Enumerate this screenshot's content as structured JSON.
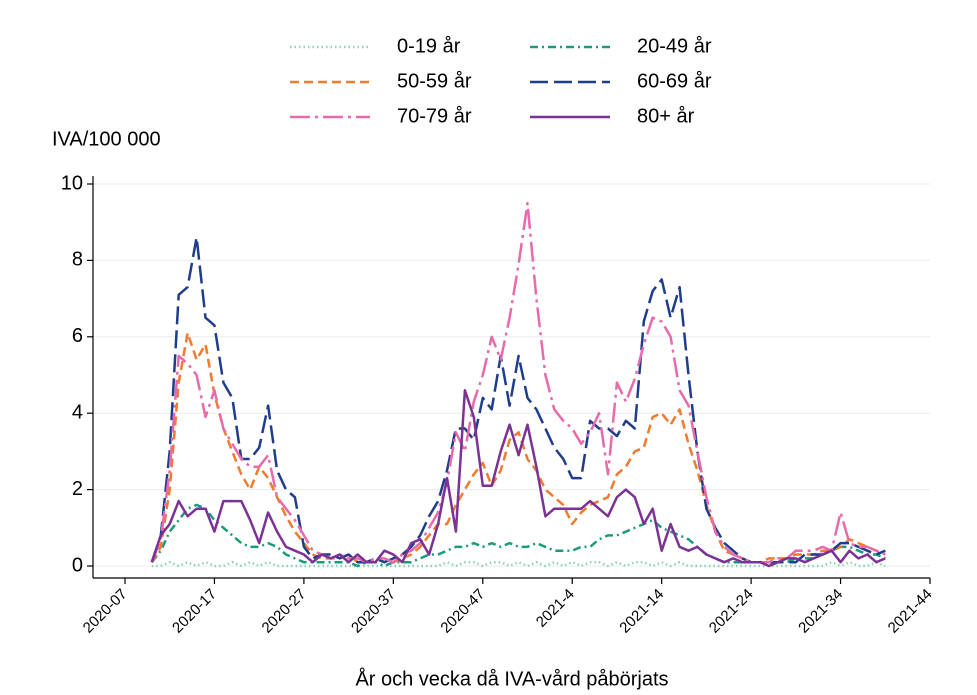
{
  "chart_data": {
    "type": "line",
    "y_label": "IVA/100 000",
    "x_label": "År och vecka då IVA-vård påbörjats",
    "x": [
      "2020-10",
      "2020-11",
      "2020-12",
      "2020-13",
      "2020-14",
      "2020-15",
      "2020-16",
      "2020-17",
      "2020-18",
      "2020-19",
      "2020-20",
      "2020-21",
      "2020-22",
      "2020-23",
      "2020-24",
      "2020-25",
      "2020-26",
      "2020-27",
      "2020-28",
      "2020-29",
      "2020-30",
      "2020-31",
      "2020-32",
      "2020-33",
      "2020-34",
      "2020-35",
      "2020-36",
      "2020-37",
      "2020-38",
      "2020-39",
      "2020-40",
      "2020-41",
      "2020-42",
      "2020-43",
      "2020-44",
      "2020-45",
      "2020-46",
      "2020-47",
      "2020-48",
      "2020-49",
      "2020-50",
      "2020-51",
      "2020-52",
      "2020-53",
      "2021-1",
      "2021-2",
      "2021-3",
      "2021-4",
      "2021-5",
      "2021-6",
      "2021-7",
      "2021-8",
      "2021-9",
      "2021-10",
      "2021-11",
      "2021-12",
      "2021-13",
      "2021-14",
      "2021-15",
      "2021-16",
      "2021-17",
      "2021-18",
      "2021-19",
      "2021-20",
      "2021-21",
      "2021-22",
      "2021-23",
      "2021-24",
      "2021-25",
      "2021-26",
      "2021-27",
      "2021-28",
      "2021-29",
      "2021-30",
      "2021-31",
      "2021-32",
      "2021-33",
      "2021-34",
      "2021-35",
      "2021-36",
      "2021-37",
      "2021-38",
      "2021-39"
    ],
    "xlim": [
      "2020-07",
      "2021-44"
    ],
    "xticks": [
      "2020-07",
      "2020-17",
      "2020-27",
      "2020-37",
      "2020-47",
      "2021-4",
      "2021-14",
      "2021-24",
      "2021-34",
      "2021-44"
    ],
    "ylim": [
      0,
      10
    ],
    "yticks": [
      0,
      2,
      4,
      6,
      8,
      10
    ],
    "grid": true,
    "legend": "top",
    "series": [
      {
        "name": "0-19 år",
        "color": "#8fd1b5",
        "dash": "dotted",
        "values": [
          0.0,
          0.0,
          0.1,
          0.0,
          0.1,
          0.0,
          0.1,
          0.0,
          0.0,
          0.1,
          0.0,
          0.1,
          0.0,
          0.1,
          0.0,
          0.0,
          0.0,
          0.0,
          0.0,
          0.0,
          0.0,
          0.0,
          0.0,
          0.0,
          0.0,
          0.0,
          0.0,
          0.0,
          0.0,
          0.0,
          0.0,
          0.0,
          0.0,
          0.1,
          0.0,
          0.1,
          0.1,
          0.0,
          0.1,
          0.1,
          0.0,
          0.1,
          0.0,
          0.1,
          0.0,
          0.1,
          0.0,
          0.1,
          0.0,
          0.1,
          0.1,
          0.0,
          0.1,
          0.0,
          0.1,
          0.1,
          0.0,
          0.1,
          0.0,
          0.1,
          0.0,
          0.0,
          0.0,
          0.0,
          0.0,
          0.0,
          0.0,
          0.0,
          0.0,
          0.0,
          0.0,
          0.0,
          0.0,
          0.0,
          0.0,
          0.0,
          0.1,
          0.0,
          0.1,
          0.0,
          0.0,
          0.1,
          0.0
        ]
      },
      {
        "name": "20-49 år",
        "color": "#1a9b7d",
        "dash": "dashdot",
        "values": [
          0.1,
          0.4,
          0.9,
          1.2,
          1.5,
          1.6,
          1.5,
          1.2,
          1.0,
          0.8,
          0.6,
          0.5,
          0.5,
          0.6,
          0.5,
          0.3,
          0.2,
          0.1,
          0.1,
          0.1,
          0.1,
          0.1,
          0.1,
          0.0,
          0.1,
          0.1,
          0.0,
          0.1,
          0.1,
          0.1,
          0.2,
          0.3,
          0.3,
          0.4,
          0.5,
          0.5,
          0.6,
          0.5,
          0.6,
          0.5,
          0.6,
          0.5,
          0.5,
          0.6,
          0.5,
          0.4,
          0.4,
          0.4,
          0.5,
          0.5,
          0.7,
          0.8,
          0.8,
          0.9,
          1.0,
          1.1,
          1.2,
          1.0,
          0.9,
          0.8,
          0.7,
          0.5,
          0.3,
          0.2,
          0.1,
          0.1,
          0.1,
          0.1,
          0.1,
          0.1,
          0.1,
          0.1,
          0.2,
          0.2,
          0.2,
          0.3,
          0.4,
          0.5,
          0.5,
          0.4,
          0.3,
          0.3,
          0.2
        ]
      },
      {
        "name": "50-59 år",
        "color": "#ef7b2f",
        "dash": "dash",
        "values": [
          0.1,
          0.5,
          2.0,
          4.8,
          6.1,
          5.4,
          5.8,
          4.5,
          3.6,
          3.0,
          2.4,
          2.0,
          2.6,
          2.3,
          1.8,
          1.3,
          0.9,
          0.6,
          0.3,
          0.2,
          0.2,
          0.2,
          0.3,
          0.1,
          0.1,
          0.2,
          0.1,
          0.1,
          0.2,
          0.3,
          0.5,
          0.8,
          1.1,
          1.1,
          1.6,
          2.0,
          2.4,
          2.7,
          2.1,
          2.5,
          3.3,
          3.5,
          2.8,
          2.5,
          2.0,
          1.8,
          1.6,
          1.1,
          1.4,
          1.6,
          1.7,
          1.8,
          2.4,
          2.6,
          3.0,
          3.1,
          3.9,
          4.0,
          3.7,
          4.1,
          3.2,
          2.5,
          1.6,
          0.9,
          0.4,
          0.3,
          0.2,
          0.1,
          0.1,
          0.2,
          0.2,
          0.2,
          0.3,
          0.3,
          0.3,
          0.4,
          0.4,
          0.5,
          0.7,
          0.6,
          0.5,
          0.4,
          0.3
        ]
      },
      {
        "name": "60-69 år",
        "color": "#1f3d8c",
        "dash": "longdash",
        "values": [
          0.1,
          0.8,
          3.0,
          7.1,
          7.3,
          8.6,
          6.5,
          6.3,
          4.8,
          4.4,
          2.8,
          2.8,
          3.1,
          4.2,
          2.5,
          2.0,
          1.8,
          0.5,
          0.2,
          0.3,
          0.3,
          0.2,
          0.3,
          0.1,
          0.1,
          0.2,
          0.1,
          0.2,
          0.3,
          0.5,
          0.8,
          1.3,
          1.7,
          2.5,
          3.6,
          3.6,
          3.3,
          4.4,
          4.1,
          5.5,
          4.2,
          5.5,
          4.4,
          4.1,
          3.6,
          3.1,
          2.8,
          2.3,
          2.3,
          3.8,
          3.6,
          3.6,
          3.4,
          3.8,
          3.6,
          6.4,
          7.2,
          7.5,
          6.5,
          7.3,
          5.0,
          3.0,
          1.5,
          1.0,
          0.6,
          0.4,
          0.2,
          0.1,
          0.1,
          0.1,
          0.1,
          0.1,
          0.1,
          0.3,
          0.3,
          0.3,
          0.4,
          0.6,
          0.6,
          0.5,
          0.4,
          0.3,
          0.4
        ]
      },
      {
        "name": "70-79 år",
        "color": "#e86aab",
        "dash": "longdashdot",
        "values": [
          0.1,
          0.7,
          2.5,
          5.5,
          5.3,
          5.0,
          3.9,
          4.6,
          3.6,
          3.2,
          2.8,
          2.6,
          2.6,
          2.9,
          1.8,
          1.5,
          1.2,
          0.8,
          0.4,
          0.3,
          0.2,
          0.3,
          0.2,
          0.2,
          0.1,
          0.2,
          0.2,
          0.1,
          0.3,
          0.4,
          0.6,
          1.0,
          1.4,
          2.2,
          3.5,
          3.0,
          4.3,
          5.0,
          6.0,
          5.4,
          6.5,
          7.9,
          9.5,
          7.0,
          5.0,
          4.1,
          3.8,
          3.6,
          3.2,
          3.5,
          4.0,
          2.4,
          4.8,
          4.3,
          4.9,
          5.8,
          6.5,
          6.4,
          6.0,
          4.6,
          4.2,
          3.0,
          1.8,
          0.9,
          0.5,
          0.3,
          0.2,
          0.1,
          0.1,
          0.1,
          0.2,
          0.2,
          0.4,
          0.4,
          0.4,
          0.5,
          0.4,
          1.4,
          0.6,
          0.5,
          0.5,
          0.4,
          0.3
        ]
      },
      {
        "name": "80+ år",
        "color": "#7b3294",
        "dash": "solid",
        "values": [
          0.1,
          0.8,
          1.1,
          1.7,
          1.3,
          1.5,
          1.5,
          0.9,
          1.7,
          1.7,
          1.7,
          1.2,
          0.6,
          1.4,
          0.9,
          0.5,
          0.4,
          0.3,
          0.1,
          0.3,
          0.2,
          0.3,
          0.1,
          0.3,
          0.1,
          0.1,
          0.4,
          0.3,
          0.1,
          0.6,
          0.7,
          0.3,
          1.1,
          2.3,
          0.9,
          4.6,
          3.9,
          2.1,
          2.1,
          3.0,
          3.7,
          2.9,
          3.7,
          2.6,
          1.3,
          1.5,
          1.5,
          1.5,
          1.5,
          1.7,
          1.5,
          1.3,
          1.8,
          2.0,
          1.8,
          1.1,
          1.5,
          0.4,
          1.1,
          0.5,
          0.4,
          0.5,
          0.3,
          0.2,
          0.1,
          0.2,
          0.1,
          0.1,
          0.1,
          0.0,
          0.1,
          0.2,
          0.2,
          0.1,
          0.2,
          0.3,
          0.4,
          0.1,
          0.4,
          0.2,
          0.3,
          0.1,
          0.2
        ]
      }
    ]
  }
}
